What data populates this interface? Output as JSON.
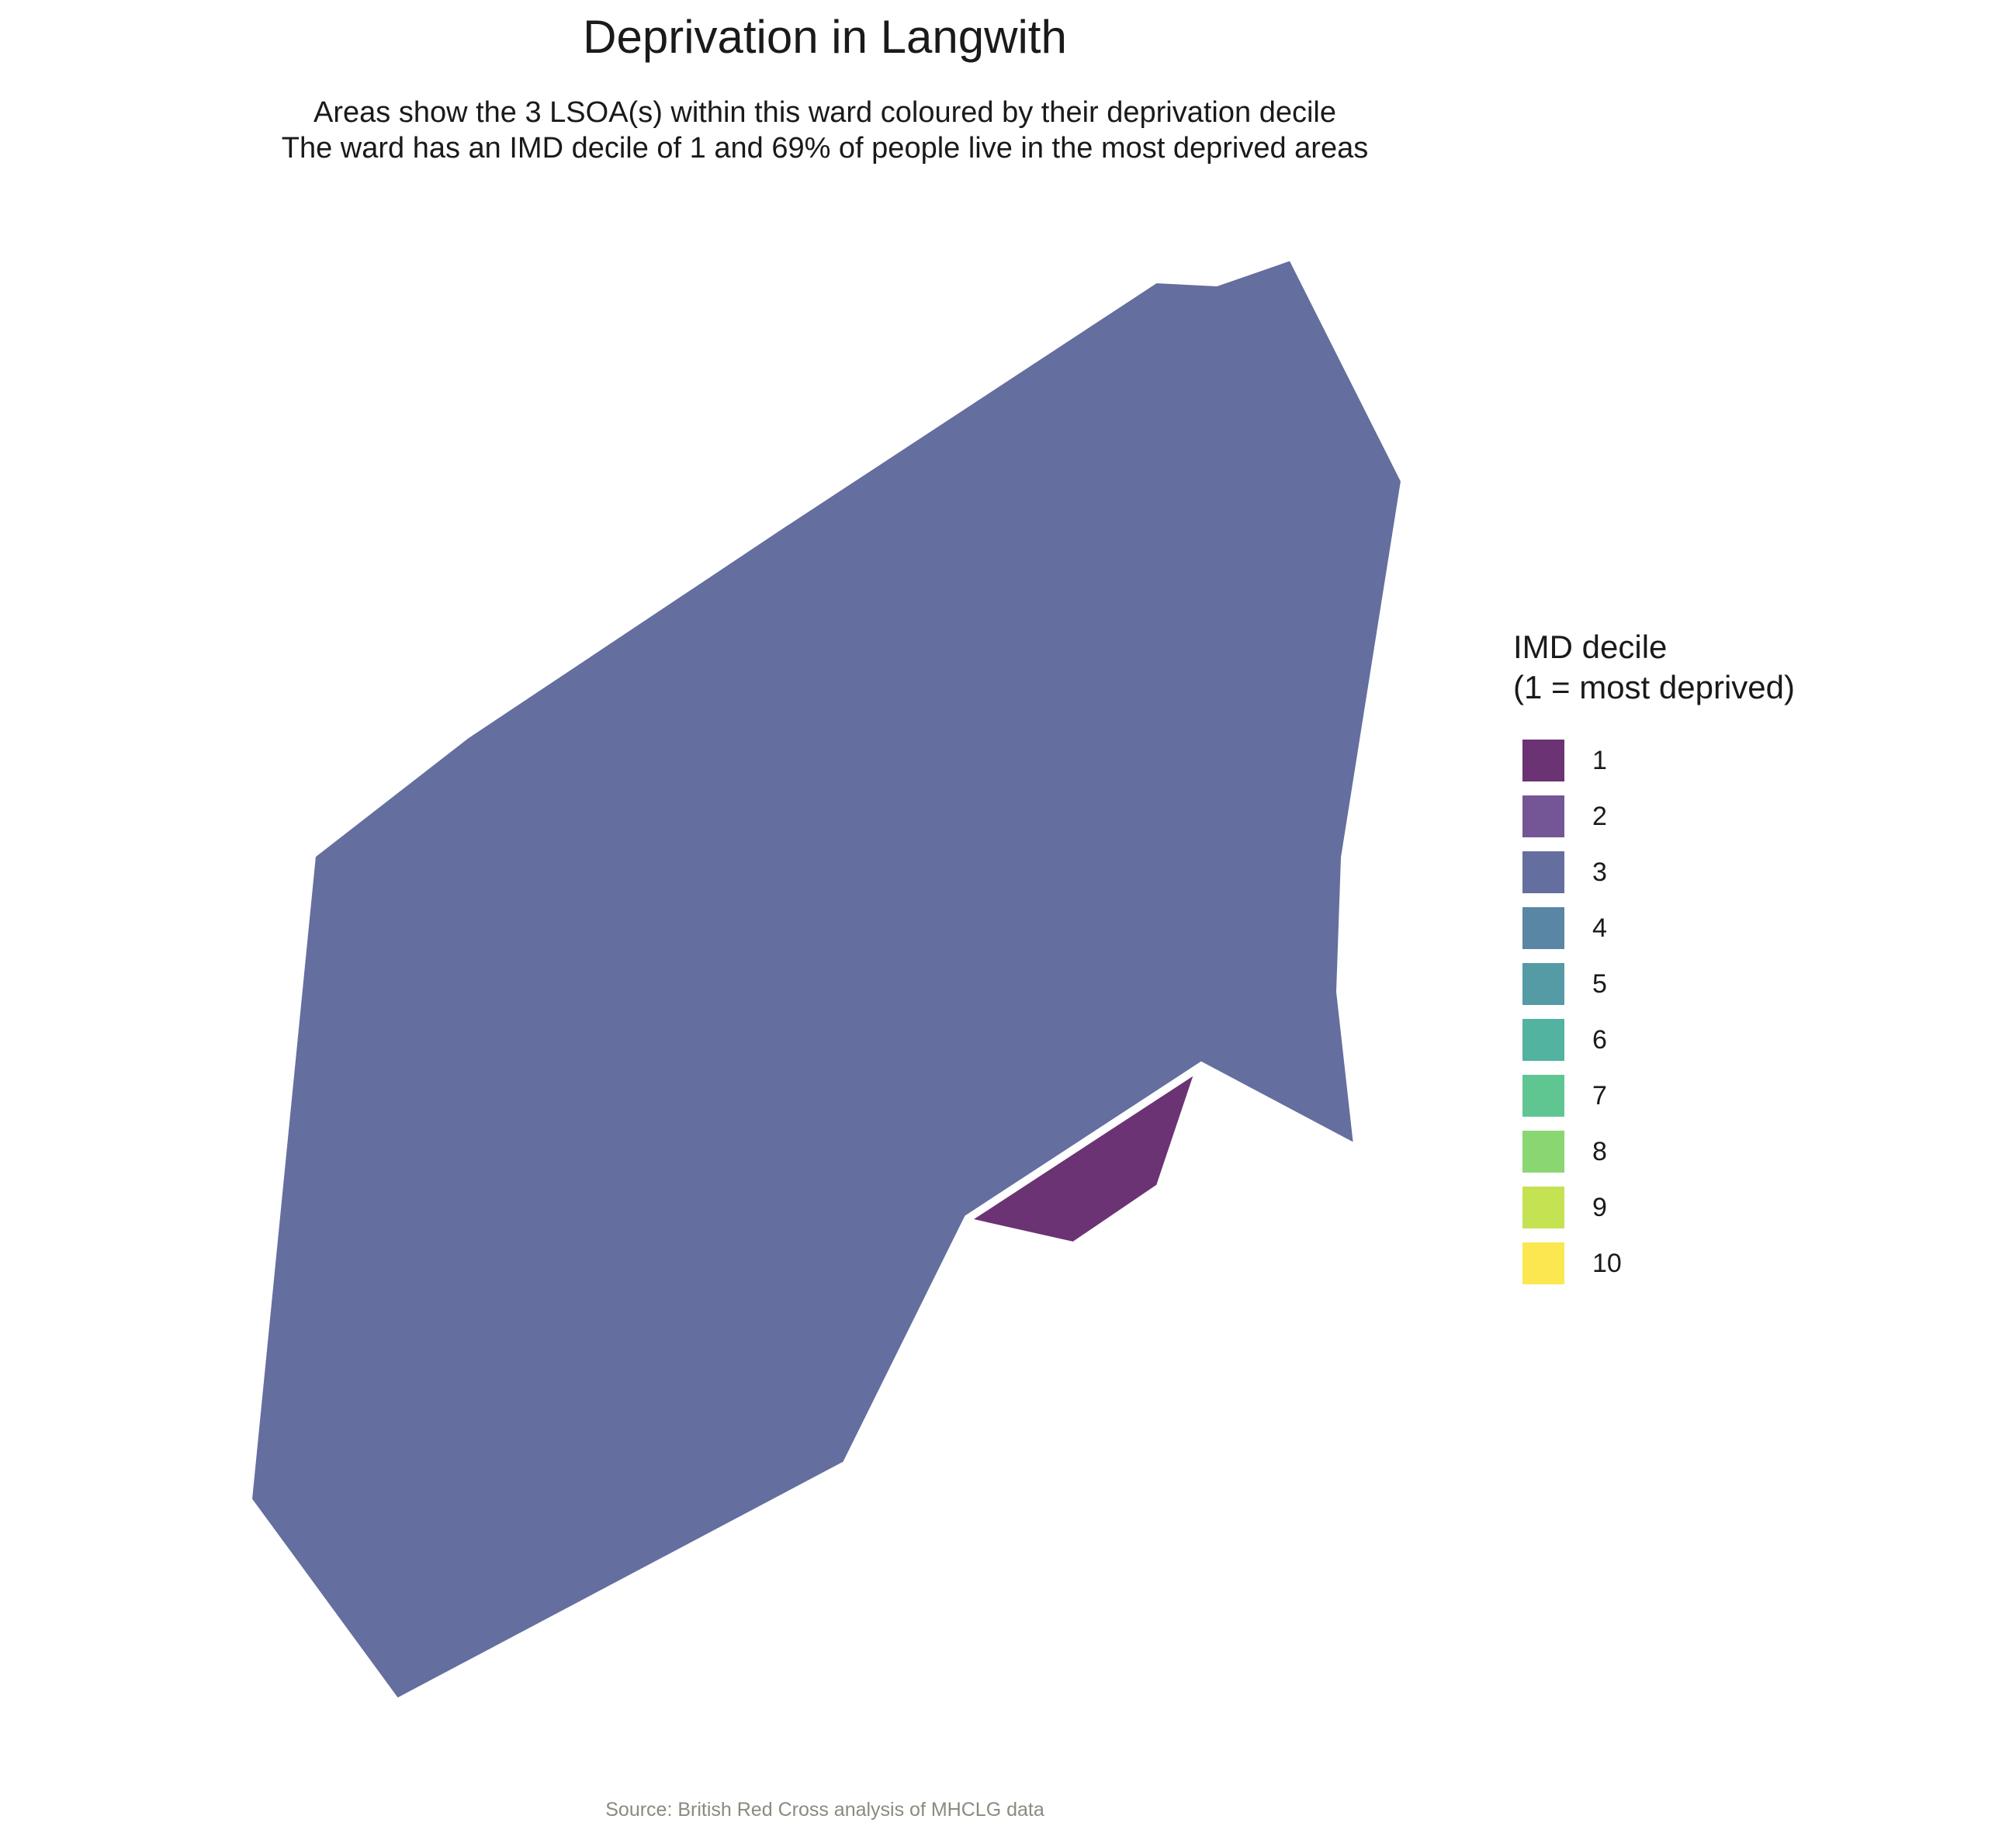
{
  "title": "Deprivation in Langwith",
  "subtitle": {
    "line1": "Areas show the 3 LSOA(s) within this ward coloured by their deprivation decile",
    "line2": "The ward has an IMD decile of 1 and 69% of people live in the most deprived areas"
  },
  "map": {
    "areas": [
      {
        "imd_decile": 3,
        "color": "#646e9f"
      },
      {
        "imd_decile": 1,
        "color": "#6b3373"
      }
    ]
  },
  "legend": {
    "title_line1": "IMD decile",
    "title_line2": "(1 = most deprived)",
    "items": [
      {
        "label": "1",
        "color": "#6b3373"
      },
      {
        "label": "2",
        "color": "#745697"
      },
      {
        "label": "3",
        "color": "#646e9f"
      },
      {
        "label": "4",
        "color": "#5986a4"
      },
      {
        "label": "5",
        "color": "#559ba5"
      },
      {
        "label": "6",
        "color": "#51b3a0"
      },
      {
        "label": "7",
        "color": "#5fc692"
      },
      {
        "label": "8",
        "color": "#89d673"
      },
      {
        "label": "9",
        "color": "#c5e253"
      },
      {
        "label": "10",
        "color": "#fbe74f"
      }
    ]
  },
  "source": "Source: British Red Cross analysis of MHCLG data"
}
